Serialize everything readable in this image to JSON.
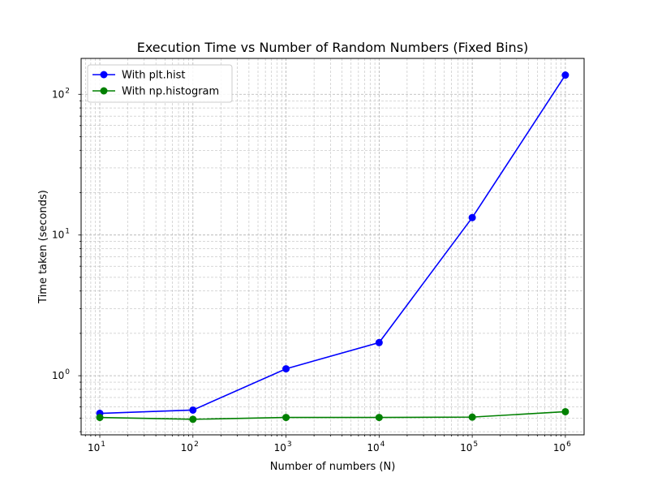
{
  "chart_data": {
    "type": "line",
    "title": "Execution Time vs Number of Random Numbers (Fixed Bins)",
    "xlabel": "Number of numbers (N)",
    "ylabel": "Time taken (seconds)",
    "xscale": "log",
    "yscale": "log",
    "xlim": [
      6.3,
      1590000
    ],
    "ylim": [
      0.38,
      180
    ],
    "grid": true,
    "grid_style": "dashed",
    "legend_position": "top-left",
    "x": [
      10,
      100,
      1000,
      10000,
      100000,
      1000000
    ],
    "x_tick_labels": [
      {
        "base": "10",
        "exp": "1"
      },
      {
        "base": "10",
        "exp": "2"
      },
      {
        "base": "10",
        "exp": "3"
      },
      {
        "base": "10",
        "exp": "4"
      },
      {
        "base": "10",
        "exp": "5"
      },
      {
        "base": "10",
        "exp": "6"
      }
    ],
    "y_tick_labels": [
      {
        "value": 1,
        "base": "10",
        "exp": "0"
      },
      {
        "value": 10,
        "base": "10",
        "exp": "1"
      },
      {
        "value": 100,
        "base": "10",
        "exp": "2"
      }
    ],
    "series": [
      {
        "name": "With plt.hist",
        "color": "#0000ff",
        "marker": "circle",
        "values": [
          0.54,
          0.57,
          1.12,
          1.72,
          13.3,
          137
        ]
      },
      {
        "name": "With np.histogram",
        "color": "#008000",
        "marker": "circle",
        "values": [
          0.505,
          0.49,
          0.505,
          0.505,
          0.508,
          0.555
        ]
      }
    ]
  }
}
